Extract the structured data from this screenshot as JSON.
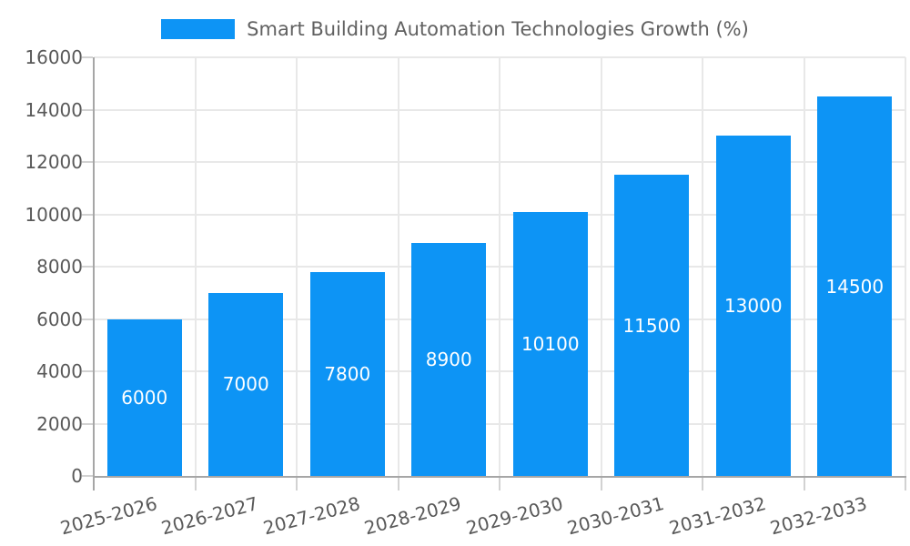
{
  "chart_data": {
    "type": "bar",
    "title": "Smart Building Automation Technologies Growth (%)",
    "categories": [
      "2025-2026",
      "2026-2027",
      "2027-2028",
      "2028-2029",
      "2029-2030",
      "2030-2031",
      "2031-2032",
      "2032-2033"
    ],
    "values": [
      6000,
      7000,
      7800,
      8900,
      10100,
      11500,
      13000,
      14500
    ],
    "value_labels": [
      "6000",
      "7000",
      "7800",
      "8900",
      "10100",
      "11500",
      "13000",
      "14500"
    ],
    "xlabel": "",
    "ylabel": "",
    "ylim": [
      0,
      16000
    ],
    "ytick_step": 2000,
    "y_tick_labels": [
      "0",
      "2000",
      "4000",
      "6000",
      "8000",
      "10000",
      "12000",
      "14000",
      "16000"
    ],
    "grid": true,
    "value_label_position": "center",
    "x_label_rotation_deg": -15,
    "legend": {
      "position": "top-center",
      "label": "Smart Building Automation Technologies Growth (%)"
    },
    "colors": {
      "bar": "#0d94f5",
      "axis": "#a6a6a6",
      "grid": "#e8e8e8",
      "tick": "#d2d2d2",
      "tick_label": "#595959",
      "title": "#616161",
      "value_label": "#ffffff",
      "background": "#ffffff"
    }
  }
}
